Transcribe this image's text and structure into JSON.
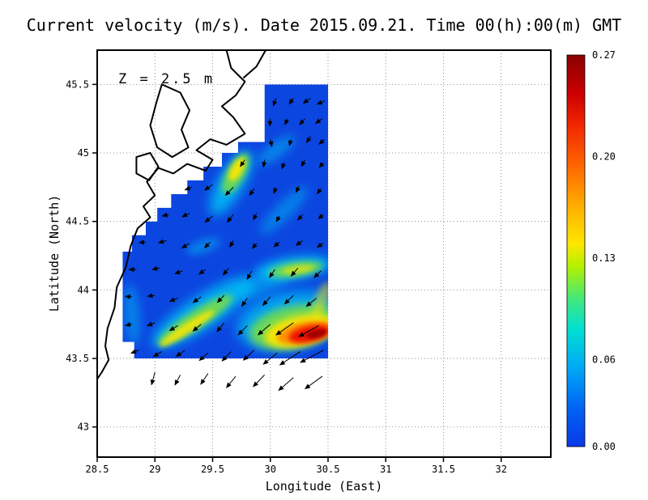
{
  "chart_data": {
    "type": "heatmap",
    "subtype": "geographic velocity field with vector arrows and colorbar",
    "title": "Current velocity (m/s). Date 2015.09.21. Time 00(h):00(m) GMT",
    "annotation": "Z = 2.5 m",
    "xlabel": "Longitude (East)",
    "ylabel": "Latitude (North)",
    "units": "m/s",
    "xlim": [
      28.5,
      32.43
    ],
    "ylim": [
      42.78,
      45.75
    ],
    "xticks": [
      "28.5",
      "29",
      "29.5",
      "30",
      "30.5",
      "31",
      "31.5",
      "32"
    ],
    "yticks": [
      "43",
      "43.5",
      "44",
      "44.5",
      "45",
      "45.5"
    ],
    "grid": "dotted",
    "colorbar": {
      "min": 0.0,
      "max": 0.27,
      "tick_labels": [
        "0.27",
        "0.20",
        "0.13",
        "0.06",
        "0.00"
      ],
      "stops": [
        {
          "o": 0.0,
          "c": "#0b38e8"
        },
        {
          "o": 0.1,
          "c": "#0064f5"
        },
        {
          "o": 0.2,
          "c": "#00a8f5"
        },
        {
          "o": 0.3,
          "c": "#00e0d2"
        },
        {
          "o": 0.38,
          "c": "#46e878"
        },
        {
          "o": 0.46,
          "c": "#b4f000"
        },
        {
          "o": 0.52,
          "c": "#ffe600"
        },
        {
          "o": 0.62,
          "c": "#ffaa00"
        },
        {
          "o": 0.72,
          "c": "#ff6400"
        },
        {
          "o": 0.82,
          "c": "#f02800"
        },
        {
          "o": 0.9,
          "c": "#cc0000"
        },
        {
          "o": 1.0,
          "c": "#8a0000"
        }
      ]
    },
    "field": {
      "base_color": "#0c46e0",
      "extent": {
        "lon": [
          28.72,
          30.5
        ],
        "lat": [
          43.5,
          45.5
        ]
      },
      "max_spot": {
        "lon": 30.34,
        "lat": 43.7,
        "value_mps": 0.27
      },
      "region": [
        [
          29.95,
          45.5
        ],
        [
          30.5,
          45.5
        ],
        [
          30.5,
          43.5
        ],
        [
          28.82,
          43.5
        ],
        [
          28.82,
          43.62
        ],
        [
          28.72,
          43.62
        ],
        [
          28.72,
          44.28
        ],
        [
          28.8,
          44.28
        ],
        [
          28.8,
          44.4
        ],
        [
          28.92,
          44.4
        ],
        [
          28.92,
          44.5
        ],
        [
          29.02,
          44.5
        ],
        [
          29.02,
          44.6
        ],
        [
          29.14,
          44.6
        ],
        [
          29.14,
          44.7
        ],
        [
          29.28,
          44.7
        ],
        [
          29.28,
          44.8
        ],
        [
          29.42,
          44.8
        ],
        [
          29.42,
          44.9
        ],
        [
          29.58,
          44.9
        ],
        [
          29.58,
          45.0
        ],
        [
          29.72,
          45.0
        ],
        [
          29.72,
          45.08
        ],
        [
          29.95,
          45.08
        ]
      ],
      "features": [
        {
          "name": "streak-sw-ne-cyan-halo",
          "c": [
            29.42,
            43.84
          ],
          "r": [
            75,
            20
          ],
          "rot": -33,
          "color": "#00c8f5",
          "blur": 7,
          "op": 0.8
        },
        {
          "name": "streak-sw-ne-green",
          "c": [
            29.35,
            43.78
          ],
          "r": [
            55,
            11
          ],
          "rot": -33,
          "color": "#7de03c",
          "blur": 4,
          "op": 0.85
        },
        {
          "name": "streak-sw-ne-yellow",
          "c": [
            29.28,
            43.72
          ],
          "r": [
            40,
            6
          ],
          "rot": -33,
          "color": "#ffe600",
          "blur": 3,
          "op": 0.85
        },
        {
          "name": "streak-extension-cyan",
          "c": [
            29.95,
            44.05
          ],
          "r": [
            40,
            12
          ],
          "rot": -25,
          "color": "#00c8f5",
          "blur": 6,
          "op": 0.5
        },
        {
          "name": "coastal-jet-cyan-halo",
          "c": [
            29.66,
            44.78
          ],
          "r": [
            45,
            16
          ],
          "rot": -60,
          "color": "#00c8f5",
          "blur": 7,
          "op": 0.8
        },
        {
          "name": "coastal-jet-green",
          "c": [
            29.7,
            44.85
          ],
          "r": [
            28,
            11
          ],
          "rot": -60,
          "color": "#7de03c",
          "blur": 4,
          "op": 0.85
        },
        {
          "name": "coastal-jet-yellow",
          "c": [
            29.71,
            44.88
          ],
          "r": [
            16,
            7
          ],
          "rot": -60,
          "color": "#ffe600",
          "blur": 3,
          "op": 0.9
        },
        {
          "name": "mid-streak-cyan",
          "c": [
            30.2,
            44.16
          ],
          "r": [
            48,
            14
          ],
          "rot": -8,
          "color": "#00c8f5",
          "blur": 6,
          "op": 0.8
        },
        {
          "name": "mid-streak-green",
          "c": [
            30.22,
            44.15
          ],
          "r": [
            34,
            9
          ],
          "rot": -8,
          "color": "#7de03c",
          "blur": 4,
          "op": 0.8
        },
        {
          "name": "mid-streak-yellow",
          "c": [
            30.24,
            44.15
          ],
          "r": [
            20,
            5
          ],
          "rot": -8,
          "color": "#ffe600",
          "blur": 3,
          "op": 0.6
        },
        {
          "name": "upper-mid-cyan",
          "c": [
            30.12,
            44.58
          ],
          "r": [
            40,
            10
          ],
          "rot": -45,
          "color": "#00c8f5",
          "blur": 6,
          "op": 0.45
        },
        {
          "name": "west-cyan-patch",
          "c": [
            29.42,
            44.32
          ],
          "r": [
            22,
            8
          ],
          "rot": -20,
          "color": "#00c8f5",
          "blur": 5,
          "op": 0.45
        },
        {
          "name": "north-block-cyan",
          "c": [
            30.05,
            45.02
          ],
          "r": [
            28,
            9
          ],
          "rot": -35,
          "color": "#00c8f5",
          "blur": 6,
          "op": 0.5
        },
        {
          "name": "coast-strip-cyan",
          "c": [
            28.8,
            43.82
          ],
          "r": [
            38,
            10
          ],
          "rot": 85,
          "color": "#00c8f5",
          "blur": 6,
          "op": 0.45
        },
        {
          "name": "hotspot-cyan-halo",
          "c": [
            30.16,
            43.78
          ],
          "r": [
            65,
            34
          ],
          "rot": -12,
          "color": "#00c8f5",
          "blur": 8,
          "op": 0.75
        },
        {
          "name": "hotspot-green-halo",
          "c": [
            30.2,
            43.73
          ],
          "r": [
            55,
            26
          ],
          "rot": -12,
          "color": "#7de03c",
          "blur": 5,
          "op": 0.85
        },
        {
          "name": "hotspot-yellow",
          "c": [
            30.26,
            43.7
          ],
          "r": [
            45,
            19
          ],
          "rot": -12,
          "color": "#ffe600",
          "blur": 4,
          "op": 0.9
        },
        {
          "name": "hotspot-orange",
          "c": [
            30.3,
            43.69
          ],
          "r": [
            35,
            13
          ],
          "rot": -12,
          "color": "#ff8c00",
          "blur": 3,
          "op": 0.95
        },
        {
          "name": "hotspot-red",
          "c": [
            30.34,
            43.68
          ],
          "r": [
            26,
            10
          ],
          "rot": -12,
          "color": "#ee1000",
          "blur": 3,
          "op": 0.95
        },
        {
          "name": "hotspot-dark-red",
          "c": [
            30.4,
            43.68
          ],
          "r": [
            13,
            5
          ],
          "rot": -12,
          "color": "#990000",
          "blur": 2,
          "op": 0.9
        },
        {
          "name": "hotspot-ne-tail-yellow",
          "c": [
            30.44,
            43.92
          ],
          "r": [
            25,
            8
          ],
          "rot": -70,
          "color": "#ffe600",
          "blur": 4,
          "op": 0.5
        }
      ]
    },
    "vectors": {
      "color": "#000000",
      "list": [
        [
          30.05,
          45.4,
          250,
          10
        ],
        [
          30.2,
          45.4,
          235,
          9
        ],
        [
          30.35,
          45.4,
          215,
          11
        ],
        [
          30.47,
          45.38,
          205,
          10
        ],
        [
          30.0,
          45.25,
          265,
          9
        ],
        [
          30.15,
          45.25,
          245,
          8
        ],
        [
          30.3,
          45.25,
          228,
          10
        ],
        [
          30.45,
          45.25,
          215,
          10
        ],
        [
          30.0,
          45.1,
          282,
          9
        ],
        [
          30.18,
          45.1,
          255,
          8
        ],
        [
          30.35,
          45.12,
          235,
          9
        ],
        [
          30.47,
          45.1,
          222,
          9
        ],
        [
          29.78,
          44.95,
          235,
          10
        ],
        [
          29.95,
          44.95,
          262,
          9
        ],
        [
          30.12,
          44.93,
          250,
          8
        ],
        [
          30.3,
          44.95,
          242,
          9
        ],
        [
          30.46,
          44.93,
          230,
          8
        ],
        [
          29.32,
          44.75,
          202,
          9
        ],
        [
          29.5,
          44.77,
          216,
          12
        ],
        [
          29.68,
          44.75,
          226,
          14
        ],
        [
          29.86,
          44.74,
          236,
          10
        ],
        [
          30.05,
          44.75,
          250,
          8
        ],
        [
          30.25,
          44.76,
          244,
          9
        ],
        [
          30.44,
          44.74,
          233,
          8
        ],
        [
          29.12,
          44.55,
          192,
          8
        ],
        [
          29.3,
          44.56,
          206,
          10
        ],
        [
          29.5,
          44.54,
          220,
          12
        ],
        [
          29.68,
          44.55,
          231,
          12
        ],
        [
          29.88,
          44.56,
          246,
          9
        ],
        [
          30.08,
          44.54,
          240,
          8
        ],
        [
          30.28,
          44.55,
          229,
          9
        ],
        [
          30.46,
          44.55,
          219,
          8
        ],
        [
          28.92,
          44.35,
          186,
          8
        ],
        [
          29.1,
          44.36,
          196,
          10
        ],
        [
          29.3,
          44.34,
          211,
          11
        ],
        [
          29.48,
          44.35,
          226,
          10
        ],
        [
          29.68,
          44.36,
          241,
          9
        ],
        [
          29.88,
          44.34,
          231,
          8
        ],
        [
          30.08,
          44.35,
          221,
          9
        ],
        [
          30.28,
          44.36,
          216,
          10
        ],
        [
          30.46,
          44.34,
          211,
          9
        ],
        [
          28.84,
          44.15,
          181,
          9
        ],
        [
          29.04,
          44.16,
          191,
          9
        ],
        [
          29.24,
          44.14,
          201,
          10
        ],
        [
          29.44,
          44.15,
          216,
          10
        ],
        [
          29.64,
          44.16,
          231,
          11
        ],
        [
          29.84,
          44.14,
          241,
          12
        ],
        [
          30.04,
          44.15,
          236,
          12
        ],
        [
          30.24,
          44.16,
          229,
          13
        ],
        [
          30.44,
          44.14,
          224,
          12
        ],
        [
          28.8,
          43.95,
          176,
          8
        ],
        [
          29.0,
          43.96,
          186,
          9
        ],
        [
          29.2,
          43.94,
          201,
          11
        ],
        [
          29.4,
          43.95,
          216,
          12
        ],
        [
          29.6,
          43.96,
          226,
          12
        ],
        [
          29.8,
          43.94,
          236,
          12
        ],
        [
          30.0,
          43.95,
          229,
          14
        ],
        [
          30.2,
          43.96,
          224,
          15
        ],
        [
          30.4,
          43.94,
          219,
          16
        ],
        [
          28.8,
          43.75,
          191,
          8
        ],
        [
          29.0,
          43.76,
          201,
          10
        ],
        [
          29.2,
          43.74,
          211,
          12
        ],
        [
          29.4,
          43.75,
          221,
          13
        ],
        [
          29.6,
          43.76,
          231,
          14
        ],
        [
          29.8,
          43.74,
          226,
          16
        ],
        [
          30.0,
          43.75,
          221,
          20
        ],
        [
          30.2,
          43.76,
          215,
          26
        ],
        [
          30.42,
          43.74,
          209,
          28
        ],
        [
          28.86,
          43.56,
          201,
          10
        ],
        [
          29.06,
          43.55,
          211,
          12
        ],
        [
          29.26,
          43.56,
          216,
          13
        ],
        [
          29.46,
          43.54,
          221,
          14
        ],
        [
          29.66,
          43.55,
          226,
          16
        ],
        [
          29.86,
          43.56,
          223,
          18
        ],
        [
          30.06,
          43.54,
          219,
          22
        ],
        [
          30.26,
          43.55,
          213,
          30
        ],
        [
          30.46,
          43.56,
          208,
          32
        ],
        [
          29.0,
          43.4,
          255,
          16
        ],
        [
          29.22,
          43.38,
          242,
          14
        ],
        [
          29.46,
          43.39,
          236,
          16
        ],
        [
          29.7,
          43.37,
          231,
          18
        ],
        [
          29.95,
          43.38,
          226,
          20
        ],
        [
          30.2,
          43.36,
          221,
          24
        ],
        [
          30.45,
          43.37,
          216,
          26
        ]
      ]
    },
    "coastlines": [
      [
        [
          29.62,
          45.75
        ],
        [
          29.66,
          45.62
        ],
        [
          29.78,
          45.52
        ],
        [
          29.7,
          45.42
        ],
        [
          29.58,
          45.34
        ],
        [
          29.68,
          45.26
        ],
        [
          29.78,
          45.14
        ],
        [
          29.62,
          45.06
        ],
        [
          29.48,
          45.1
        ],
        [
          29.36,
          45.02
        ],
        [
          29.5,
          44.95
        ],
        [
          29.44,
          44.87
        ],
        [
          29.28,
          44.92
        ],
        [
          29.16,
          44.85
        ],
        [
          29.03,
          44.89
        ],
        [
          28.93,
          44.79
        ],
        [
          29.0,
          44.69
        ],
        [
          28.9,
          44.61
        ],
        [
          28.96,
          44.53
        ],
        [
          28.85,
          44.45
        ],
        [
          28.79,
          44.32
        ],
        [
          28.75,
          44.17
        ],
        [
          28.67,
          44.02
        ],
        [
          28.65,
          43.87
        ],
        [
          28.59,
          43.72
        ],
        [
          28.57,
          43.59
        ],
        [
          28.6,
          43.49
        ],
        [
          28.54,
          43.4
        ],
        [
          28.5,
          43.35
        ]
      ],
      [
        [
          29.96,
          45.75
        ],
        [
          29.88,
          45.63
        ],
        [
          29.77,
          45.55
        ]
      ],
      [
        [
          29.06,
          45.5
        ],
        [
          29.22,
          45.44
        ],
        [
          29.3,
          45.31
        ],
        [
          29.23,
          45.17
        ],
        [
          29.29,
          45.04
        ],
        [
          29.15,
          44.97
        ],
        [
          29.02,
          45.04
        ],
        [
          28.96,
          45.2
        ],
        [
          29.01,
          45.36
        ],
        [
          29.06,
          45.5
        ]
      ],
      [
        [
          28.84,
          44.97
        ],
        [
          28.96,
          45.0
        ],
        [
          29.03,
          44.9
        ],
        [
          28.95,
          44.8
        ],
        [
          28.84,
          44.85
        ],
        [
          28.84,
          44.97
        ]
      ]
    ]
  }
}
